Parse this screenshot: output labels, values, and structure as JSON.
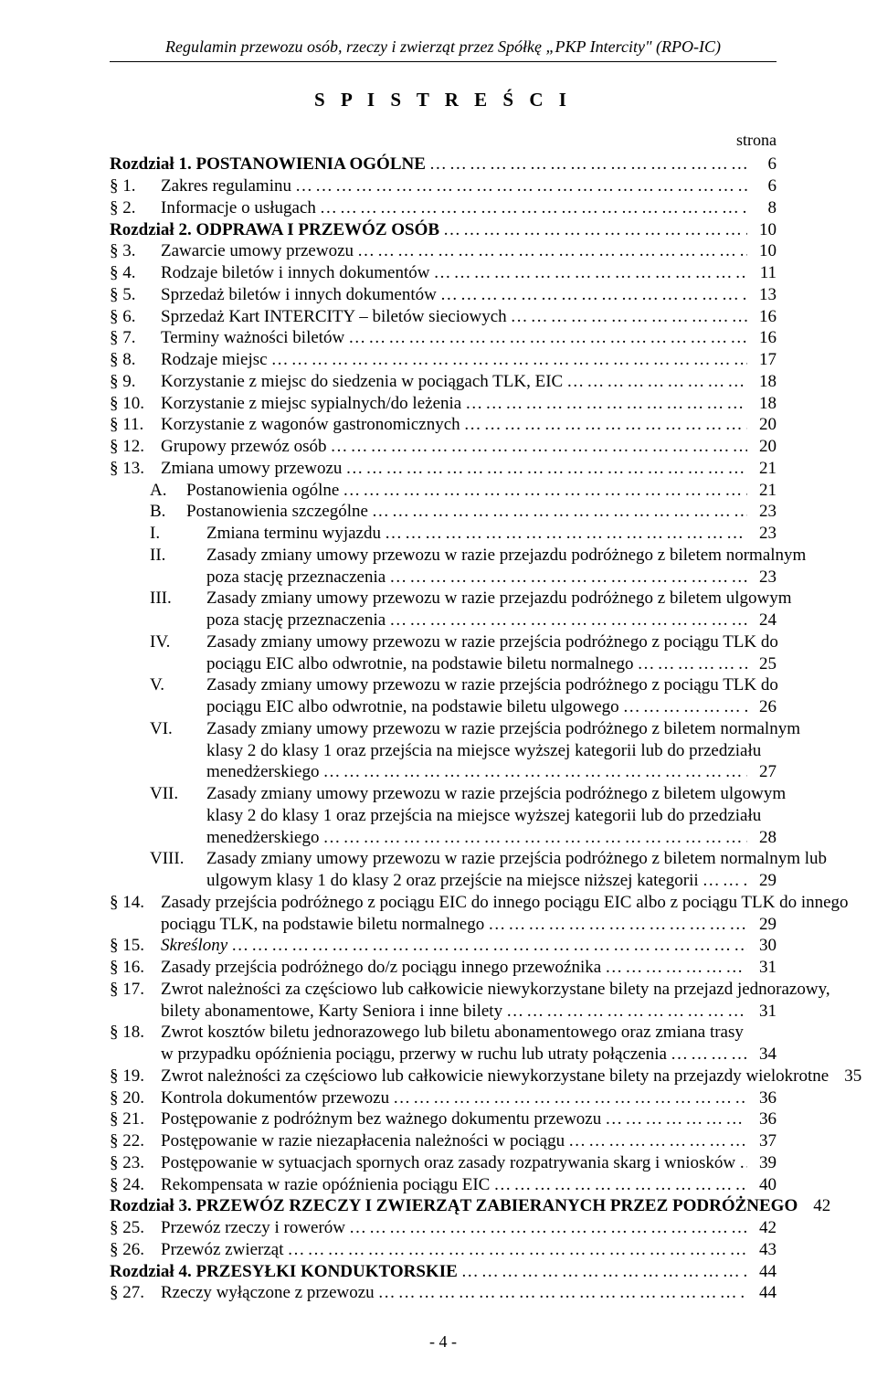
{
  "header": {
    "running_title": "Regulamin przewozu osób, rzeczy i zwierząt przez Spółkę „PKP Intercity\" (RPO-IC)",
    "toc_title": "S P I S  T R E Ś C I",
    "strona_label": "strona",
    "page_number": "- 4 -"
  },
  "entries": [
    {
      "type": "chapter",
      "label": "Rozdział 1. POSTANOWIENIA OGÓLNE",
      "page": "6"
    },
    {
      "type": "section",
      "sym": "§ 1.",
      "label": "Zakres regulaminu",
      "page": "6"
    },
    {
      "type": "section",
      "sym": "§ 2.",
      "label": "Informacje o usługach",
      "page": "8"
    },
    {
      "type": "chapter",
      "label": "Rozdział 2. ODPRAWA I PRZEWÓZ OSÓB",
      "page": "10"
    },
    {
      "type": "section",
      "sym": "§ 3.",
      "label": "Zawarcie umowy przewozu",
      "page": "10"
    },
    {
      "type": "section",
      "sym": "§ 4.",
      "label": "Rodzaje biletów i innych dokumentów",
      "page": "11"
    },
    {
      "type": "section",
      "sym": "§ 5.",
      "label": "Sprzedaż biletów i innych dokumentów",
      "page": "13"
    },
    {
      "type": "section",
      "sym": "§ 6.",
      "label": "Sprzedaż Kart INTERCITY – biletów sieciowych",
      "page": "16"
    },
    {
      "type": "section",
      "sym": "§ 7.",
      "label": "Terminy ważności biletów",
      "page": "16"
    },
    {
      "type": "section",
      "sym": "§ 8.",
      "label": "Rodzaje miejsc",
      "page": "17"
    },
    {
      "type": "section",
      "sym": "§ 9.",
      "label": "Korzystanie z miejsc do siedzenia w pociągach TLK, EIC",
      "page": "18"
    },
    {
      "type": "section",
      "sym": "§ 10.",
      "label": "Korzystanie z miejsc sypialnych/do leżenia",
      "page": "18"
    },
    {
      "type": "section",
      "sym": "§ 11.",
      "label": "Korzystanie z wagonów gastronomicznych",
      "page": "20"
    },
    {
      "type": "section",
      "sym": "§ 12.",
      "label": "Grupowy przewóz osób",
      "page": "20"
    },
    {
      "type": "section",
      "sym": "§ 13.",
      "label": "Zmiana umowy przewozu",
      "page": "21"
    },
    {
      "type": "sub",
      "sym": "A.",
      "label": "Postanowienia ogólne",
      "page": "21"
    },
    {
      "type": "sub",
      "sym": "B.",
      "label": "Postanowienia szczególne",
      "page": "23"
    },
    {
      "type": "roman",
      "sym": "I.",
      "label": "Zmiana terminu wyjazdu",
      "page": "23"
    },
    {
      "type": "roman-multi",
      "sym": "II.",
      "lines": [
        "Zasady zmiany umowy przewozu w razie przejazdu podróżnego z biletem normalnym",
        "poza stację przeznaczenia"
      ],
      "page": "23"
    },
    {
      "type": "roman-multi",
      "sym": "III.",
      "lines": [
        "Zasady zmiany umowy przewozu w razie przejazdu podróżnego z biletem ulgowym",
        "poza stację przeznaczenia"
      ],
      "page": "24"
    },
    {
      "type": "roman-multi",
      "sym": "IV.",
      "lines": [
        "Zasady zmiany umowy przewozu w razie przejścia podróżnego z pociągu TLK do",
        "pociągu EIC albo odwrotnie, na podstawie biletu normalnego"
      ],
      "page": "25"
    },
    {
      "type": "roman-multi",
      "sym": "V.",
      "lines": [
        "Zasady zmiany umowy przewozu w razie przejścia podróżnego z pociągu TLK do",
        "pociągu EIC albo odwrotnie, na podstawie biletu ulgowego"
      ],
      "page": "26"
    },
    {
      "type": "roman-multi",
      "sym": "VI.",
      "lines": [
        "Zasady zmiany umowy przewozu w razie przejścia podróżnego z biletem normalnym",
        "klasy 2 do klasy 1 oraz przejścia na miejsce wyższej kategorii lub do przedziału",
        "menedżerskiego"
      ],
      "page": "27"
    },
    {
      "type": "roman-multi",
      "sym": "VII.",
      "lines": [
        "Zasady zmiany umowy przewozu w razie przejścia podróżnego z biletem ulgowym",
        "klasy 2 do klasy 1 oraz przejścia na miejsce wyższej kategorii lub do przedziału",
        "menedżerskiego"
      ],
      "page": "28"
    },
    {
      "type": "roman-multi",
      "sym": "VIII.",
      "lines": [
        "Zasady zmiany umowy przewozu w razie przejścia podróżnego z biletem normalnym lub",
        "ulgowym klasy 1 do klasy 2 oraz przejście na miejsce niższej kategorii"
      ],
      "page": "29"
    },
    {
      "type": "section-multi",
      "sym": "§ 14.",
      "lines": [
        "Zasady przejścia podróżnego z pociągu EIC do innego pociągu EIC albo z pociągu TLK do innego",
        "pociągu TLK, na podstawie biletu normalnego"
      ],
      "page": "29"
    },
    {
      "type": "section",
      "sym": "§ 15.",
      "label": "Skreślony",
      "italic": true,
      "page": "30"
    },
    {
      "type": "section",
      "sym": "§ 16.",
      "label": "Zasady przejścia podróżnego do/z pociągu innego przewoźnika",
      "page": "31"
    },
    {
      "type": "section-multi",
      "sym": "§ 17.",
      "lines": [
        "Zwrot należności za częściowo lub całkowicie niewykorzystane bilety na przejazd jednorazowy,",
        "bilety abonamentowe, Karty Seniora i inne bilety"
      ],
      "page": "31"
    },
    {
      "type": "section-multi",
      "sym": "§ 18.",
      "lines": [
        "Zwrot kosztów biletu jednorazowego lub biletu abonamentowego oraz zmiana trasy",
        "w przypadku opóźnienia pociągu, przerwy w ruchu lub utraty połączenia"
      ],
      "page": "34"
    },
    {
      "type": "section",
      "sym": "§ 19.",
      "label": "Zwrot należności za częściowo lub całkowicie niewykorzystane bilety na przejazdy wielokrotne",
      "page": "35"
    },
    {
      "type": "section",
      "sym": "§ 20.",
      "label": "Kontrola dokumentów przewozu",
      "page": "36"
    },
    {
      "type": "section",
      "sym": "§ 21.",
      "label": "Postępowanie z podróżnym bez ważnego dokumentu przewozu",
      "page": "36"
    },
    {
      "type": "section",
      "sym": "§ 22.",
      "label": "Postępowanie w razie niezapłacenia należności w pociągu",
      "page": "37"
    },
    {
      "type": "section",
      "sym": "§ 23.",
      "label": "Postępowanie w sytuacjach spornych oraz zasady rozpatrywania skarg i wniosków",
      "page": "39"
    },
    {
      "type": "section",
      "sym": "§ 24.",
      "label": "Rekompensata w razie opóźnienia pociągu EIC",
      "page": "40"
    },
    {
      "type": "chapter",
      "label": "Rozdział 3. PRZEWÓZ RZECZY I ZWIERZĄT ZABIERANYCH PRZEZ PODRÓŻNEGO",
      "page": "42"
    },
    {
      "type": "section",
      "sym": "§ 25.",
      "label": "Przewóz rzeczy i rowerów",
      "page": "42"
    },
    {
      "type": "section",
      "sym": "§ 26.",
      "label": "Przewóz zwierząt",
      "page": "43"
    },
    {
      "type": "chapter",
      "label": "Rozdział 4. PRZESYŁKI KONDUKTORSKIE",
      "page": "44"
    },
    {
      "type": "section",
      "sym": "§ 27.",
      "label": "Rzeczy wyłączone z przewozu",
      "page": "44"
    }
  ]
}
